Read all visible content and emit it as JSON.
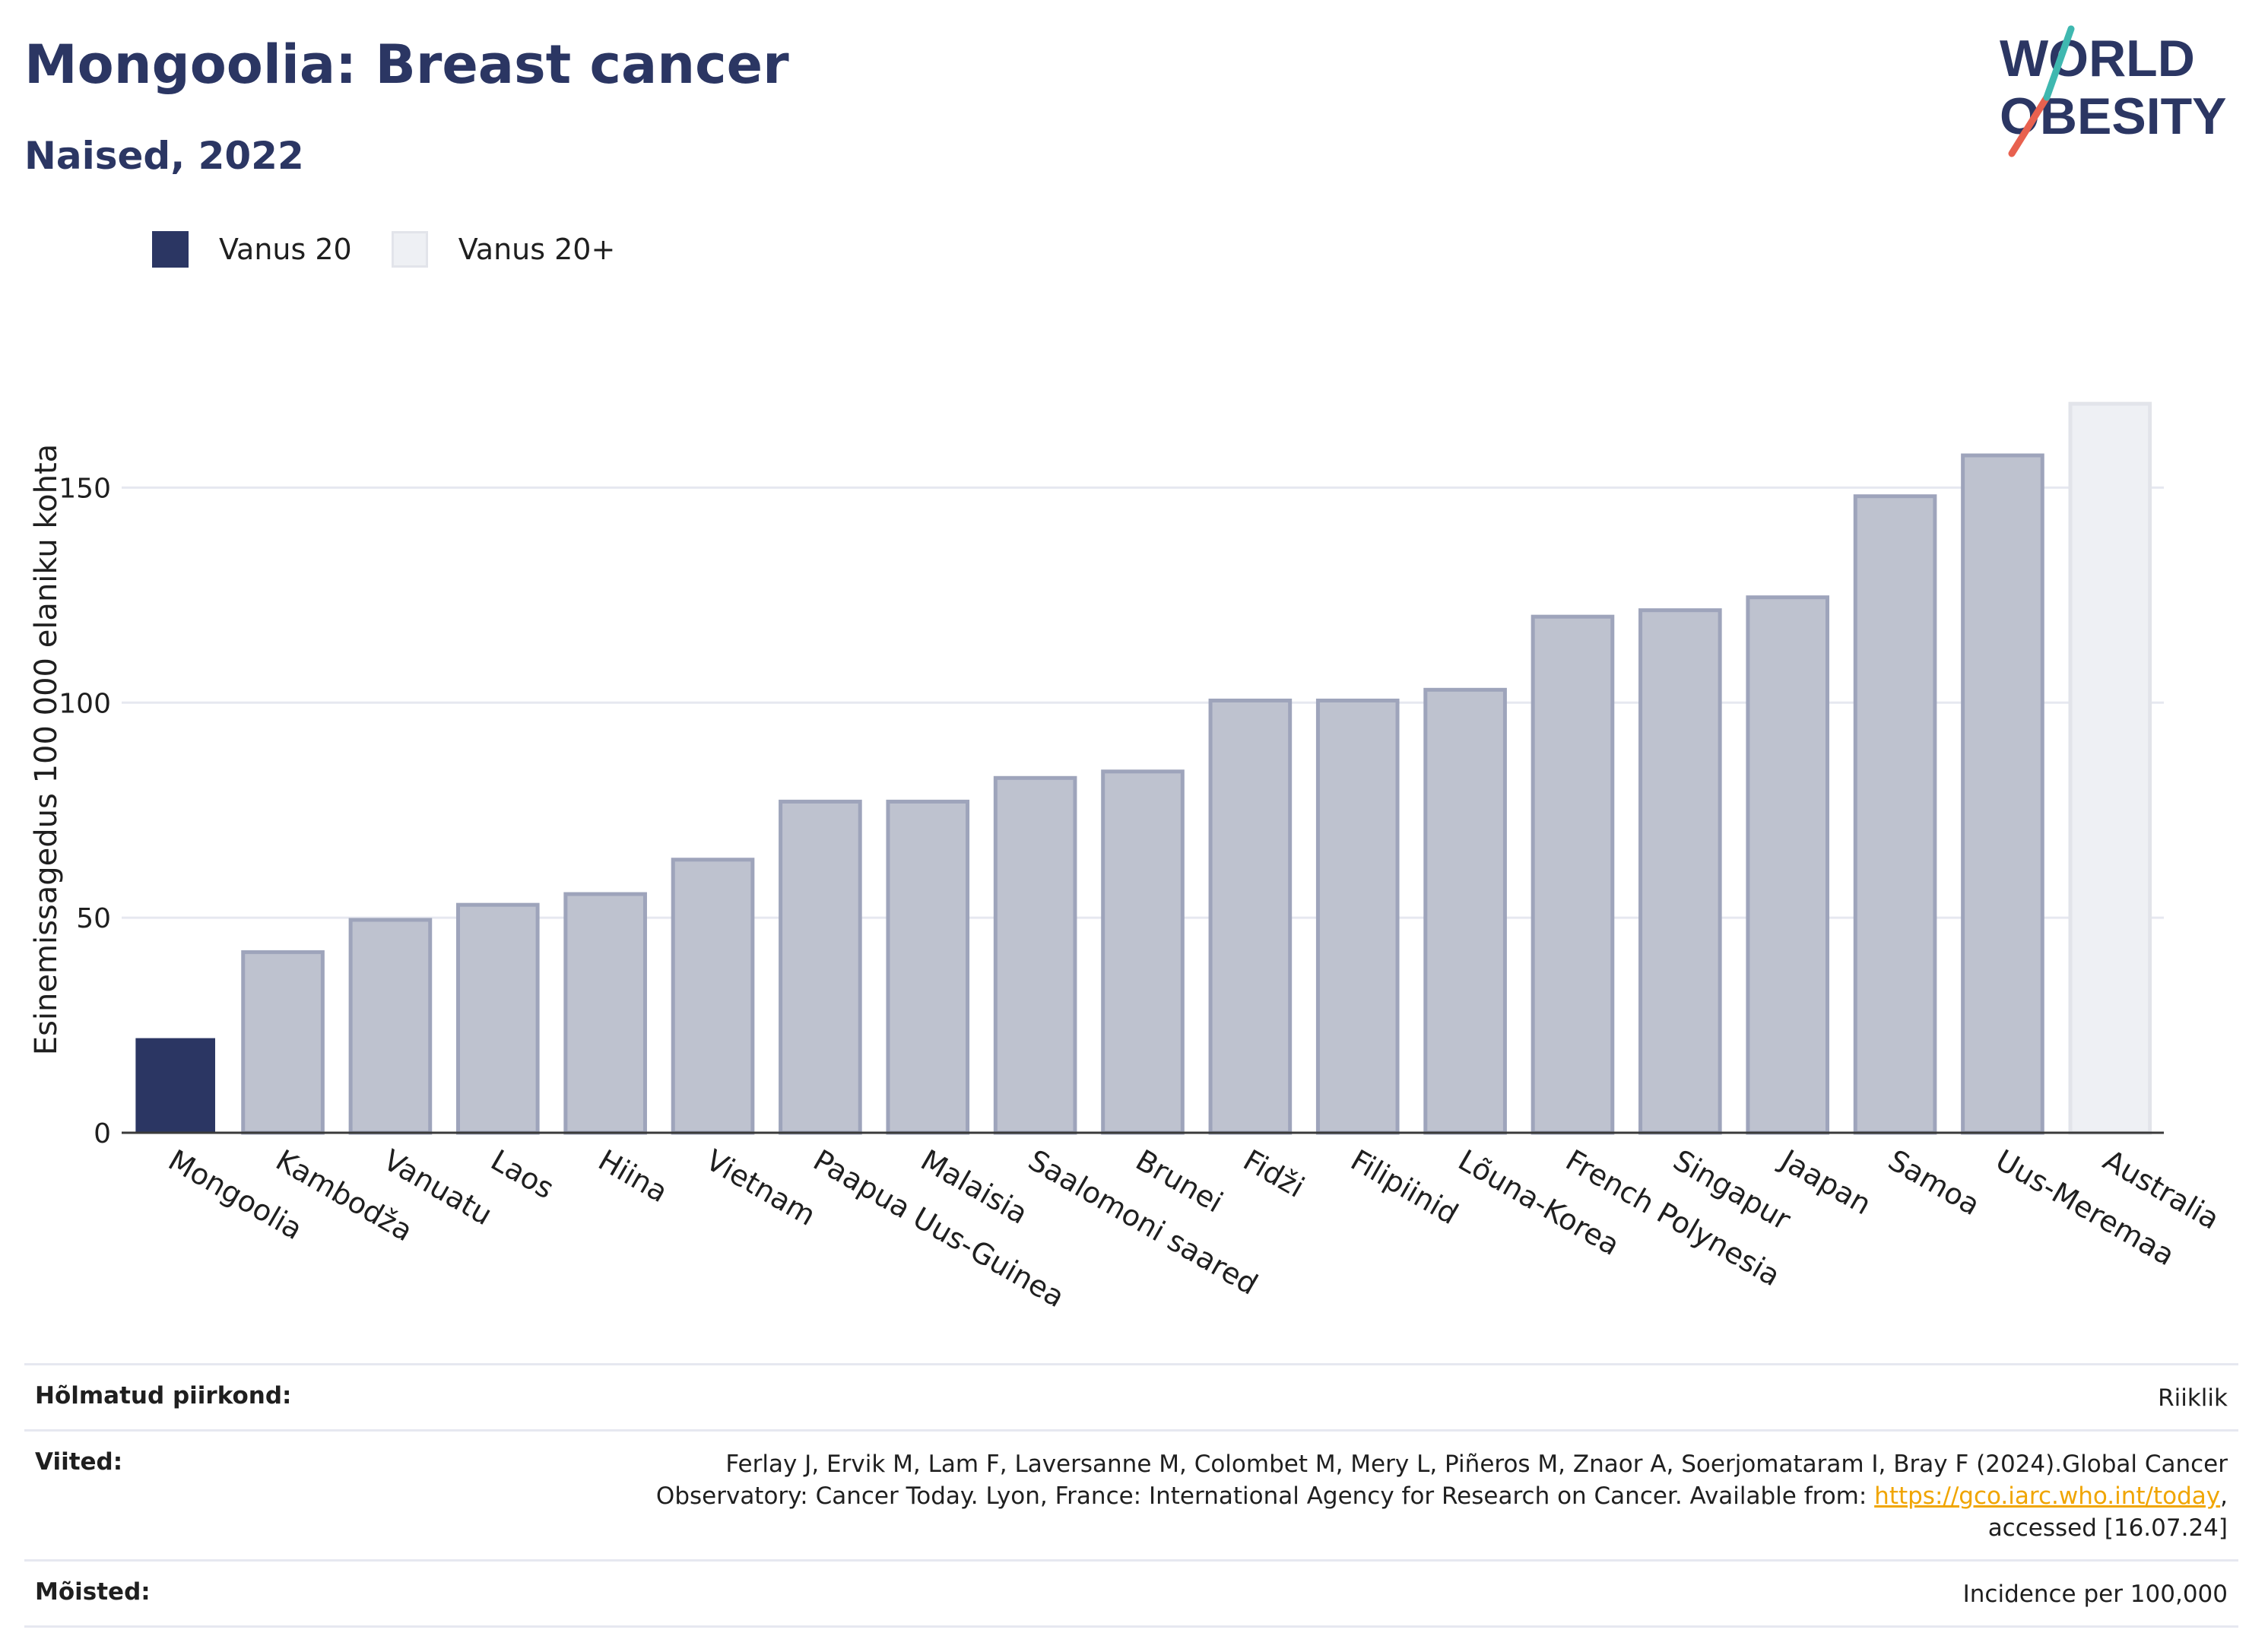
{
  "header": {
    "title": "Mongoolia: Breast cancer",
    "subtitle": "Naised, 2022"
  },
  "logo": {
    "line1": "WORLD",
    "line2": "OBESITY",
    "slash_colors": [
      "#e8614f",
      "#3fb8b0"
    ]
  },
  "legend": {
    "items": [
      {
        "label": "Vanus 20",
        "color": "#2b3663"
      },
      {
        "label": "Vanus 20+",
        "color": "#eef0f4"
      }
    ]
  },
  "chart_data": {
    "type": "bar",
    "ylabel": "Esinemissagedus 100 000 elaniku kohta",
    "ylim": [
      0,
      175
    ],
    "yticks": [
      0,
      50,
      100,
      150
    ],
    "grid": true,
    "categories": [
      "Mongoolia",
      "Kambodža",
      "Vanuatu",
      "Laos",
      "Hiina",
      "Vietnam",
      "Paapua Uus-Guinea",
      "Malaisia",
      "Saalomoni saared",
      "Brunei",
      "Fidži",
      "Filipiinid",
      "Lõuna-Korea",
      "French Polynesia",
      "Singapur",
      "Jaapan",
      "Samoa",
      "Uus-Meremaa",
      "Australia"
    ],
    "values": [
      22,
      42,
      49.5,
      53,
      55.5,
      63.5,
      77,
      77,
      82.5,
      84,
      100.5,
      100.5,
      103,
      120,
      121.5,
      124.5,
      148,
      157.5,
      169.5
    ],
    "colors": {
      "highlight_fill": "#2b3663",
      "other_fill": "#bec2cf",
      "other_stroke": "#9ea4bb",
      "last_fill": "#eef0f4",
      "last_stroke": "#e2e4ea",
      "grid": "#e6e8f0",
      "axis": "#3a3a3a"
    }
  },
  "footer": {
    "rows": [
      {
        "key": "Hõlmatud piirkond:",
        "value": "Riiklik"
      },
      {
        "key": "Viited:",
        "value_lines": [
          "Ferlay J, Ervik M, Lam F, Laversanne M, Colombet M, Mery L, Piñeros M, Znaor A, Soerjomataram I, Bray F (2024).Global Cancer",
          "Observatory: Cancer Today. Lyon, France: International Agency for Research on Cancer. Available from: "
        ],
        "link": "https://gco.iarc.who.int/today",
        "after_link": ",",
        "last_line": "accessed [16.07.24]"
      },
      {
        "key": "Mõisted:",
        "value": "Incidence per 100,000"
      }
    ]
  }
}
